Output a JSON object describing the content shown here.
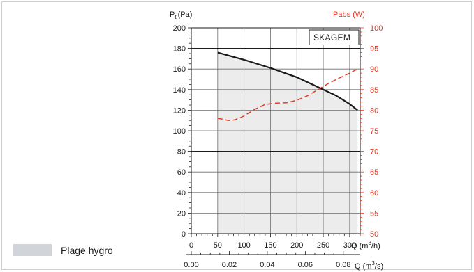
{
  "chart_data": {
    "type": "line",
    "y_left_label": "P",
    "y_left_label_sub": "t",
    "y_left_label_unit": "(Pa)",
    "y_right_label": "Pabs (W)",
    "x_label": "Q (m",
    "x_label_sup": "3",
    "x_label_end": "/h)",
    "x2_label": "Q (m",
    "x2_label_sup": "3",
    "x2_label_end": "/s)",
    "model_label": "SKAGEM",
    "legend_label": "Plage hygro",
    "xlim": [
      0,
      320
    ],
    "ylim_left": [
      0,
      200
    ],
    "ylim_right": [
      50,
      100
    ],
    "x_ticks": [
      "0",
      "50",
      "100",
      "150",
      "200",
      "250",
      "300"
    ],
    "x_tick_values": [
      0,
      50,
      100,
      150,
      200,
      250,
      300
    ],
    "x2_ticks": [
      "0.00",
      "0.02",
      "0.04",
      "0.06",
      "0.08"
    ],
    "x2_tick_values": [
      0,
      0.02,
      0.04,
      0.06,
      0.08
    ],
    "y_left_ticks": [
      "0",
      "20",
      "40",
      "60",
      "80",
      "100",
      "120",
      "140",
      "160",
      "180",
      "200"
    ],
    "y_left_tick_values": [
      0,
      20,
      40,
      60,
      80,
      100,
      120,
      140,
      160,
      180,
      200
    ],
    "y_right_ticks": [
      "50",
      "55",
      "60",
      "65",
      "70",
      "75",
      "80",
      "85",
      "90",
      "95",
      "100"
    ],
    "y_right_tick_values": [
      50,
      55,
      60,
      65,
      70,
      75,
      80,
      85,
      90,
      95,
      100
    ],
    "hygro_range": [
      50,
      315
    ],
    "series": [
      {
        "axis": "left",
        "color": "#1a1a1a",
        "style": "solid",
        "x": [
          50,
          100,
          150,
          200,
          250,
          275,
          300,
          315
        ],
        "y": [
          176,
          169,
          161,
          152,
          140,
          134,
          126,
          120
        ]
      },
      {
        "axis": "right",
        "color": "#e8321e",
        "style": "dashed",
        "x": [
          50,
          60,
          70,
          80,
          90,
          100,
          120,
          140,
          160,
          180,
          200,
          220,
          240,
          260,
          280,
          300,
          315
        ],
        "y": [
          78,
          77.8,
          77.5,
          77.6,
          78,
          78.6,
          80.2,
          81.4,
          81.7,
          81.8,
          82.4,
          83.5,
          85,
          86.5,
          87.8,
          89,
          90
        ]
      }
    ],
    "colors": {
      "fill": "#ececec",
      "legend_swatch": "#d1d5d9",
      "right_axis": "#e8321e"
    }
  }
}
